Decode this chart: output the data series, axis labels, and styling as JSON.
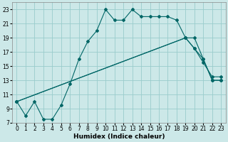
{
  "xlabel": "Humidex (Indice chaleur)",
  "bg_color": "#cce8e8",
  "grid_color": "#99cccc",
  "line_color": "#006666",
  "xlim": [
    -0.5,
    23.5
  ],
  "ylim": [
    7,
    24
  ],
  "xticks": [
    0,
    1,
    2,
    3,
    4,
    5,
    6,
    7,
    8,
    9,
    10,
    11,
    12,
    13,
    14,
    15,
    16,
    17,
    18,
    19,
    20,
    21,
    22,
    23
  ],
  "yticks": [
    7,
    9,
    11,
    13,
    15,
    17,
    19,
    21,
    23
  ],
  "line1_x": [
    0,
    1,
    2,
    3,
    4,
    5,
    6,
    7,
    8,
    9,
    10,
    11,
    12,
    13,
    14,
    15,
    16,
    17,
    18,
    19,
    20,
    21,
    22,
    23
  ],
  "line1_y": [
    10,
    8,
    10,
    7.5,
    7.5,
    9.5,
    12.5,
    16,
    18.5,
    20,
    23,
    21.5,
    21.5,
    23,
    22,
    22,
    22,
    22,
    21.5,
    19,
    19,
    16,
    13,
    13
  ],
  "line2_x": [
    0,
    19,
    20,
    21,
    22,
    23
  ],
  "line2_y": [
    10,
    19,
    17.5,
    16,
    13,
    13
  ],
  "line3_x": [
    0,
    19,
    20,
    21,
    22,
    23
  ],
  "line3_y": [
    10,
    19,
    17.5,
    15.5,
    13.5,
    13.5
  ],
  "tick_fontsize": 5.5,
  "xlabel_fontsize": 6.5
}
